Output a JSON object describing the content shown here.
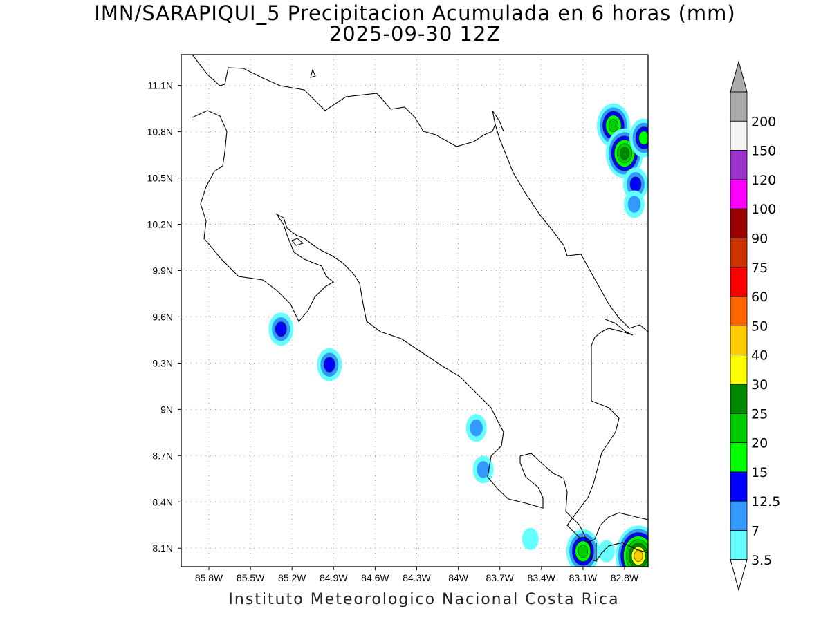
{
  "title": {
    "line1": "IMN/SARAPIQUI_5 Precipitacion Acumulada en 6 horas (mm)",
    "line2": "2025-09-30 12Z"
  },
  "footer": "Instituto Meteorologico Nacional Costa Rica",
  "map": {
    "lon_range": [
      -86.0,
      -82.63
    ],
    "lat_range": [
      7.98,
      11.3
    ],
    "lon_ticks": [
      "85.8W",
      "85.5W",
      "85.2W",
      "84.9W",
      "84.6W",
      "84.3W",
      "84W",
      "83.7W",
      "83.4W",
      "83.1W",
      "82.8W"
    ],
    "lon_tick_values": [
      -85.8,
      -85.5,
      -85.2,
      -84.9,
      -84.6,
      -84.3,
      -84.0,
      -83.7,
      -83.4,
      -83.1,
      -82.8
    ],
    "lat_ticks": [
      "11.1N",
      "10.8N",
      "10.5N",
      "10.2N",
      "9.9N",
      "9.6N",
      "9.3N",
      "9N",
      "8.7N",
      "8.4N",
      "8.1N"
    ],
    "lat_tick_values": [
      11.1,
      10.8,
      10.5,
      10.2,
      9.9,
      9.6,
      9.3,
      9.0,
      8.7,
      8.4,
      8.1
    ],
    "grid": "dotted",
    "coastline_color": "#000000"
  },
  "colorbar": {
    "labels": [
      "3.5",
      "7",
      "12.5",
      "15",
      "20",
      "25",
      "30",
      "40",
      "50",
      "60",
      "75",
      "90",
      "100",
      "120",
      "150",
      "200"
    ],
    "colors": [
      "#66ffff",
      "#3399ff",
      "#0000ff",
      "#00ff00",
      "#00cc00",
      "#008800",
      "#ffff00",
      "#ffcc00",
      "#ff6600",
      "#ff0000",
      "#cc3300",
      "#990000",
      "#ff00ff",
      "#9933cc",
      "#f5f5f5",
      "#aaaaaa"
    ],
    "under_color": "#ffffff",
    "over_color": "#aaaaaa"
  },
  "precip_cells": [
    {
      "lon": -82.88,
      "lat": 10.84,
      "level": 4
    },
    {
      "lon": -82.8,
      "lat": 10.66,
      "level": 5
    },
    {
      "lon": -82.66,
      "lat": 10.76,
      "level": 3
    },
    {
      "lon": -82.72,
      "lat": 10.46,
      "level": 2
    },
    {
      "lon": -82.73,
      "lat": 10.33,
      "level": 1
    },
    {
      "lon": -85.28,
      "lat": 9.52,
      "level": 2
    },
    {
      "lon": -84.93,
      "lat": 9.29,
      "level": 2
    },
    {
      "lon": -83.87,
      "lat": 8.88,
      "level": 1
    },
    {
      "lon": -83.82,
      "lat": 8.61,
      "level": 1
    },
    {
      "lon": -83.1,
      "lat": 8.08,
      "level": 4
    },
    {
      "lon": -82.7,
      "lat": 8.05,
      "level": 7
    },
    {
      "lon": -83.48,
      "lat": 8.16,
      "level": 0
    },
    {
      "lon": -82.93,
      "lat": 8.08,
      "level": 0
    }
  ]
}
